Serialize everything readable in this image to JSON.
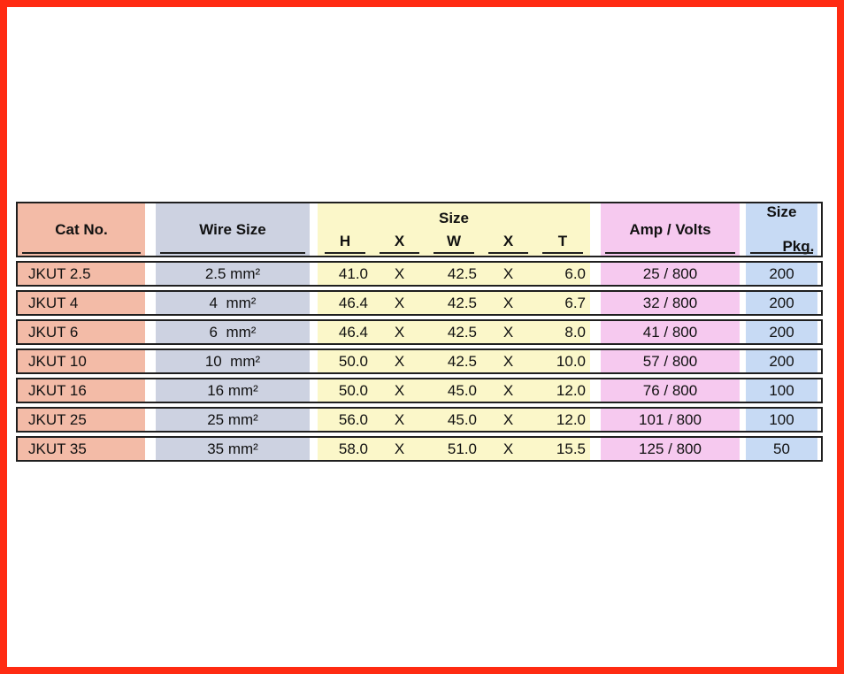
{
  "page": {
    "frame_color": "#ff2b12"
  },
  "table": {
    "columns": {
      "cat_no": "Cat No.",
      "wire_size": "Wire Size",
      "size_group": "Size",
      "size_sub": [
        "H",
        "X",
        "W",
        "X",
        "T"
      ],
      "amp_volts": "Amp / Volts",
      "size_pkg": [
        "Size",
        "Pkg."
      ]
    },
    "colors": {
      "cat_no": "#f3bba7",
      "wire_size": "#cdd2e1",
      "size": "#fbf7c9",
      "amp_volts": "#f6c9ef",
      "size_pkg": "#c7daf4"
    },
    "rows": [
      {
        "cat": "JKUT 2.5",
        "wire": "2.5 mm²",
        "h": "41.0",
        "x1": "X",
        "w": "42.5",
        "x2": "X",
        "t": "6.0",
        "amp": "25 / 800",
        "pkg": "200"
      },
      {
        "cat": "JKUT 4",
        "wire": "4  mm²",
        "h": "46.4",
        "x1": "X",
        "w": "42.5",
        "x2": "X",
        "t": "6.7",
        "amp": "32 / 800",
        "pkg": "200"
      },
      {
        "cat": "JKUT 6",
        "wire": "6  mm²",
        "h": "46.4",
        "x1": "X",
        "w": "42.5",
        "x2": "X",
        "t": "8.0",
        "amp": "41 / 800",
        "pkg": "200"
      },
      {
        "cat": "JKUT 10",
        "wire": "10  mm²",
        "h": "50.0",
        "x1": "X",
        "w": "42.5",
        "x2": "X",
        "t": "10.0",
        "amp": "57 / 800",
        "pkg": "200"
      },
      {
        "cat": "JKUT 16",
        "wire": "16 mm²",
        "h": "50.0",
        "x1": "X",
        "w": "45.0",
        "x2": "X",
        "t": "12.0",
        "amp": "76 / 800",
        "pkg": "100"
      },
      {
        "cat": "JKUT 25",
        "wire": "25 mm²",
        "h": "56.0",
        "x1": "X",
        "w": "45.0",
        "x2": "X",
        "t": "12.0",
        "amp": "101 / 800",
        "pkg": "100"
      },
      {
        "cat": "JKUT 35",
        "wire": "35 mm²",
        "h": "58.0",
        "x1": "X",
        "w": "51.0",
        "x2": "X",
        "t": "15.5",
        "amp": "125 / 800",
        "pkg": "50"
      }
    ]
  }
}
